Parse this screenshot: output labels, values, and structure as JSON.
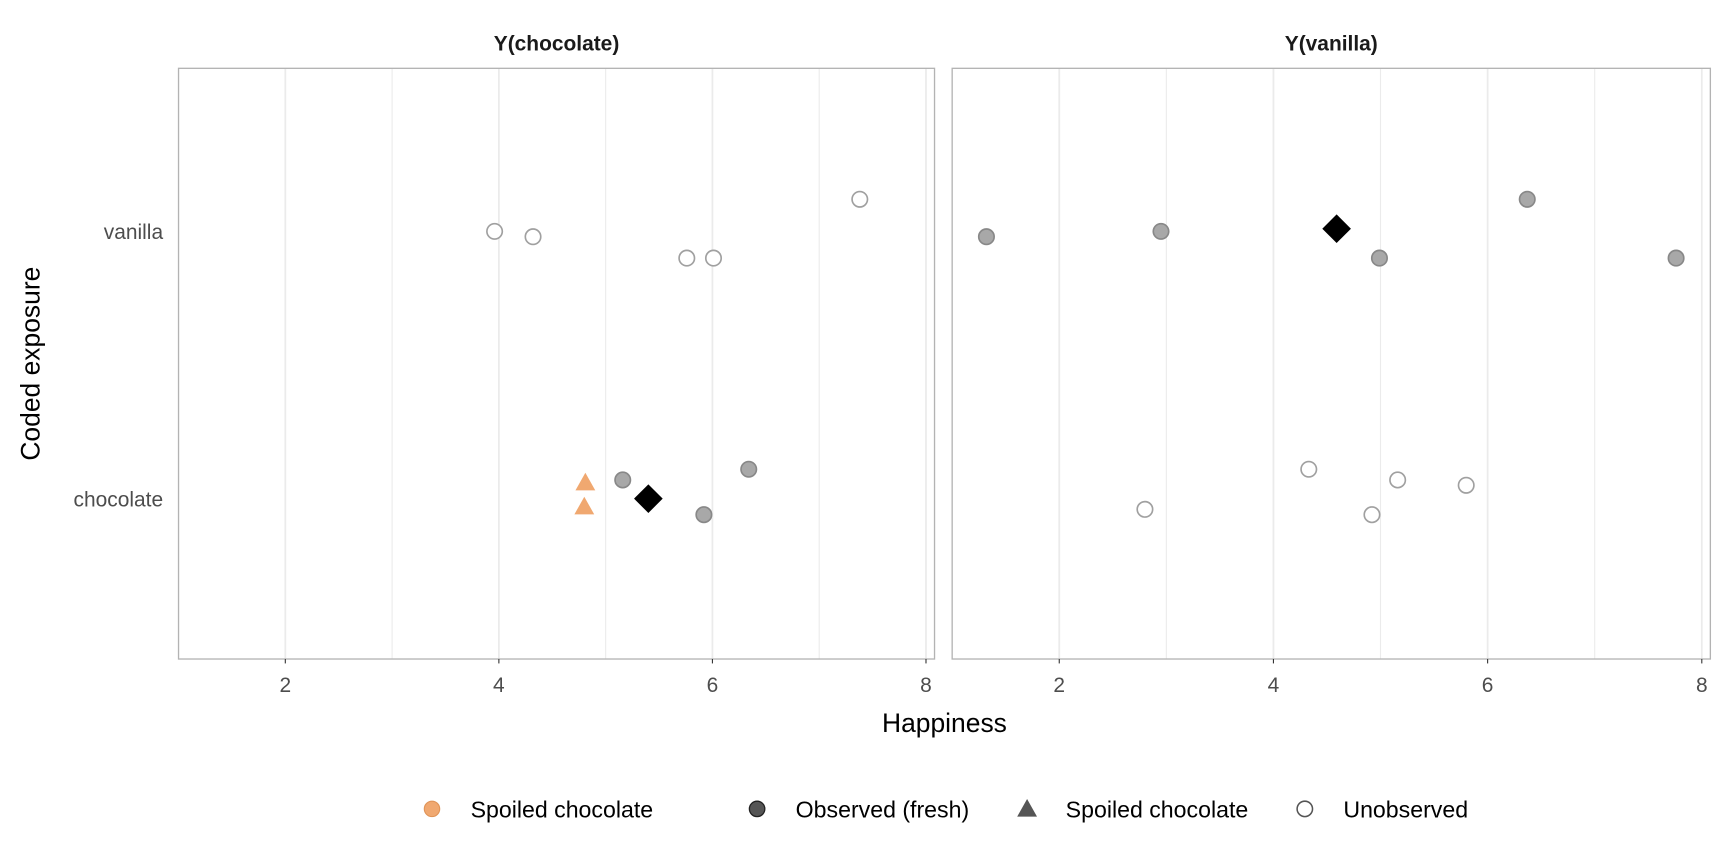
{
  "chart_data": {
    "type": "scatter",
    "xlabel": "Happiness",
    "ylabel": "Coded exposure",
    "xlim": [
      1.0,
      8.08
    ],
    "x_ticks": [
      2,
      4,
      6,
      8
    ],
    "y_categories": [
      "chocolate",
      "vanilla"
    ],
    "grid": true,
    "legend_placement": "bottom",
    "colors": {
      "spoiled": "#F0A870",
      "observed_fill": "#A8A8A8",
      "observed_stroke": "#888888",
      "unobserved_stroke": "#A0A0A0",
      "mean": "#000000",
      "grid": "#EBEBEB",
      "border": "#B3B3B3"
    },
    "legend": [
      {
        "label": "Spoiled chocolate",
        "shape": "circle",
        "style": "spoiled"
      },
      {
        "label": "Observed (fresh)",
        "shape": "circle",
        "style": "observed-dark"
      },
      {
        "label": "Spoiled chocolate",
        "shape": "triangle",
        "style": "dark"
      },
      {
        "label": "Unobserved",
        "shape": "circle",
        "style": "open"
      }
    ],
    "panels": [
      {
        "title": "Y(chocolate)",
        "points": [
          {
            "x": 3.96,
            "y": 2.0,
            "kind": "unobserved"
          },
          {
            "x": 4.32,
            "y": 1.98,
            "kind": "unobserved"
          },
          {
            "x": 5.76,
            "y": 1.9,
            "kind": "unobserved"
          },
          {
            "x": 6.01,
            "y": 1.9,
            "kind": "unobserved"
          },
          {
            "x": 7.38,
            "y": 2.12,
            "kind": "unobserved"
          },
          {
            "x": 5.16,
            "y": 1.07,
            "kind": "observed"
          },
          {
            "x": 6.34,
            "y": 1.11,
            "kind": "observed"
          },
          {
            "x": 5.92,
            "y": 0.94,
            "kind": "observed"
          },
          {
            "x": 4.81,
            "y": 1.06,
            "kind": "spoiled"
          },
          {
            "x": 4.8,
            "y": 0.97,
            "kind": "spoiled"
          },
          {
            "x": 5.4,
            "y": 1.0,
            "kind": "mean"
          }
        ]
      },
      {
        "title": "Y(vanilla)",
        "points": [
          {
            "x": 1.32,
            "y": 1.98,
            "kind": "observed"
          },
          {
            "x": 2.95,
            "y": 2.0,
            "kind": "observed"
          },
          {
            "x": 4.99,
            "y": 1.9,
            "kind": "observed"
          },
          {
            "x": 6.37,
            "y": 2.12,
            "kind": "observed"
          },
          {
            "x": 7.76,
            "y": 1.9,
            "kind": "observed"
          },
          {
            "x": 4.59,
            "y": 2.01,
            "kind": "mean"
          },
          {
            "x": 4.33,
            "y": 1.11,
            "kind": "unobserved"
          },
          {
            "x": 5.16,
            "y": 1.07,
            "kind": "unobserved"
          },
          {
            "x": 5.8,
            "y": 1.05,
            "kind": "unobserved"
          },
          {
            "x": 2.8,
            "y": 0.96,
            "kind": "unobserved"
          },
          {
            "x": 4.92,
            "y": 0.94,
            "kind": "unobserved"
          }
        ]
      }
    ]
  }
}
